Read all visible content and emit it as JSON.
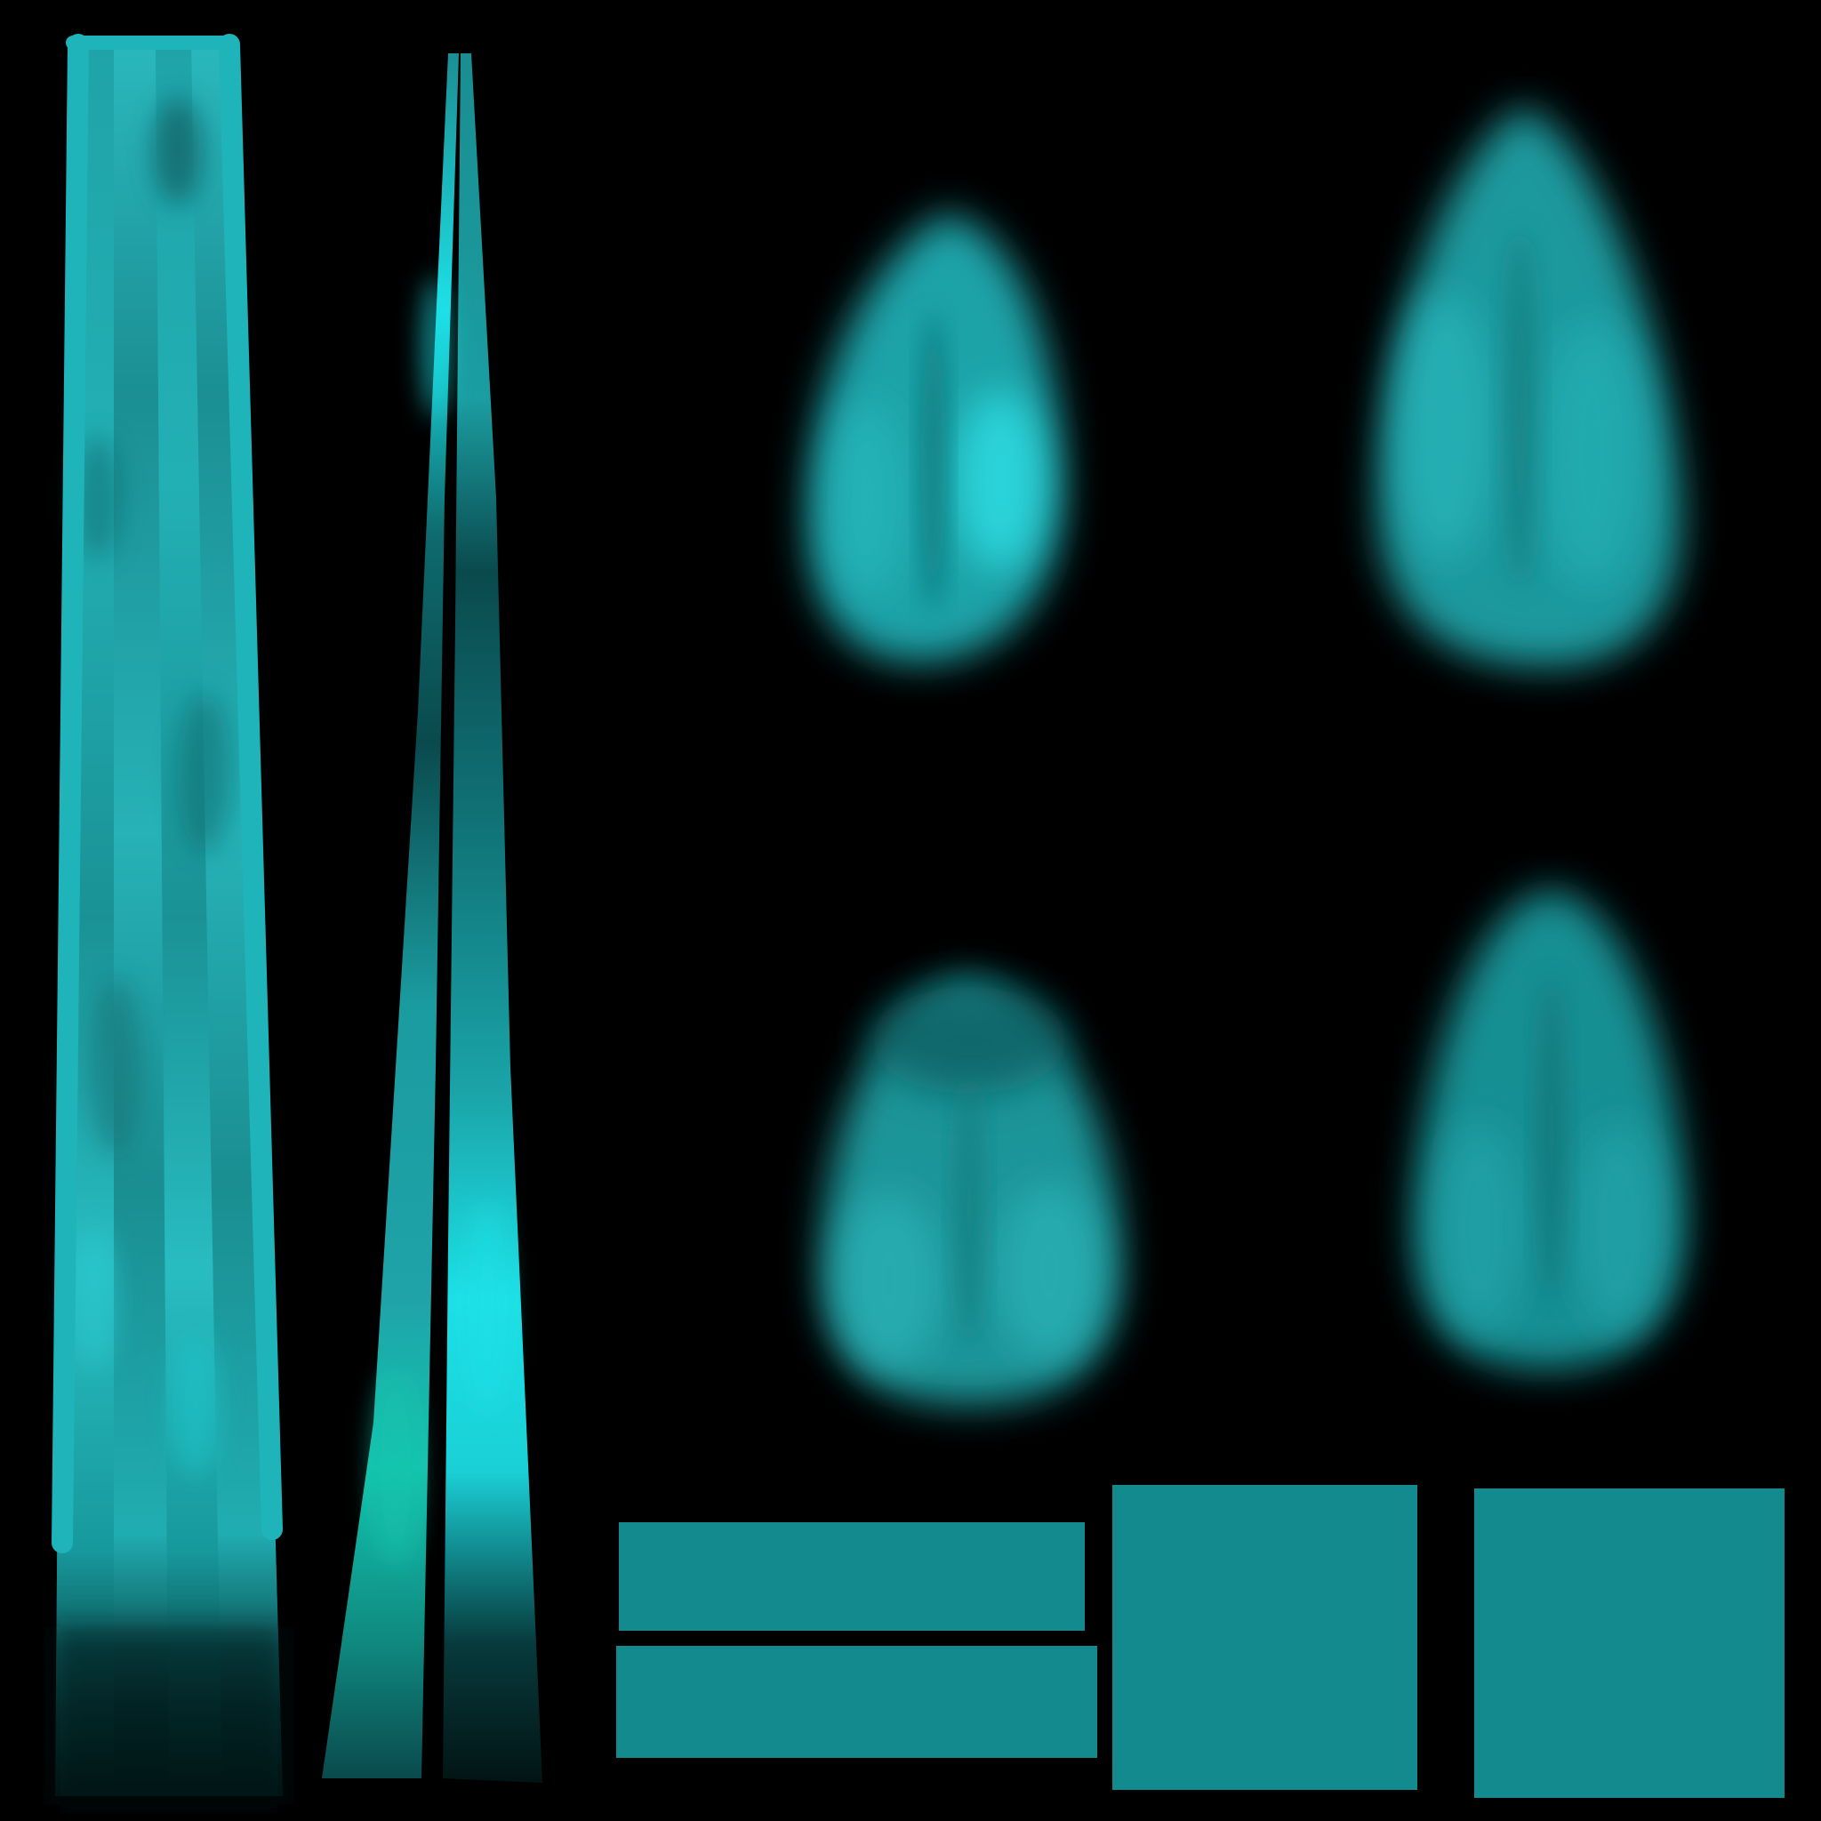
{
  "texture": {
    "background_color": "#000000",
    "palette": {
      "teal_base": "#128a8e",
      "teal_mid": "#1fa3a8",
      "teal_light": "#2cc3c8",
      "teal_bright": "#1de0e6",
      "teal_dark": "#0a4a4d",
      "teal_green": "#14c4ae",
      "near_black": "#021414"
    },
    "islands": [
      {
        "name": "strands-wide",
        "kind": "hair-strands"
      },
      {
        "name": "strands-narrow",
        "kind": "hair-strands"
      },
      {
        "name": "blob-top-left",
        "kind": "blurred-petal"
      },
      {
        "name": "blob-top-right",
        "kind": "blurred-petal"
      },
      {
        "name": "blob-bottom-left",
        "kind": "blurred-petal"
      },
      {
        "name": "blob-bottom-right",
        "kind": "blurred-petal"
      },
      {
        "name": "bar-top",
        "kind": "flat-fill"
      },
      {
        "name": "bar-bottom",
        "kind": "flat-fill"
      },
      {
        "name": "square-middle",
        "kind": "flat-fill"
      },
      {
        "name": "square-right",
        "kind": "flat-fill"
      }
    ]
  }
}
